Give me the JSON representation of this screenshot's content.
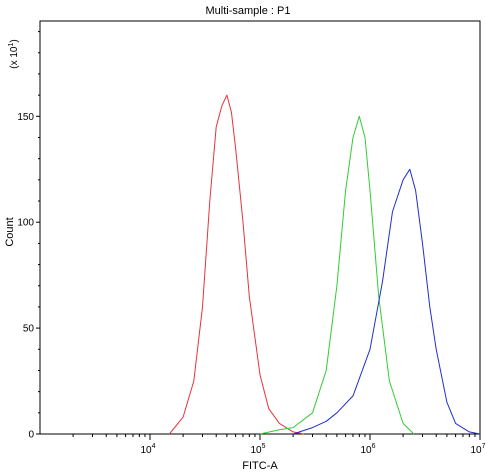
{
  "chart_data": {
    "type": "line",
    "title": "Multi-sample : P1",
    "xlabel": "FITC-A",
    "ylabel": "Count",
    "y_multiplier_label": {
      "base": "(x 10",
      "exp": "1",
      "close": ")"
    },
    "x_scale": "log",
    "xlim": [
      1000,
      10000000
    ],
    "ylim": [
      0,
      195
    ],
    "x_ticks": [
      {
        "base": "10",
        "exp": "4",
        "value": 10000
      },
      {
        "base": "10",
        "exp": "5",
        "value": 100000
      },
      {
        "base": "10",
        "exp": "6",
        "value": 1000000
      },
      {
        "base": "10",
        "exp": "7",
        "value": 10000000
      }
    ],
    "y_ticks": [
      {
        "label": "0",
        "value": 0
      },
      {
        "label": "50",
        "value": 50
      },
      {
        "label": "100",
        "value": 100
      },
      {
        "label": "150",
        "value": 150
      }
    ],
    "grid": false,
    "series": [
      {
        "color": "#e8323c",
        "x": [
          15000,
          20000,
          25000,
          30000,
          35000,
          40000,
          45000,
          50000,
          55000,
          60000,
          70000,
          80000,
          100000,
          120000,
          150000,
          200000,
          250000
        ],
        "y": [
          0,
          8,
          25,
          60,
          110,
          145,
          155,
          160,
          152,
          135,
          100,
          65,
          28,
          12,
          5,
          1,
          0
        ]
      },
      {
        "color": "#33cc33",
        "x": [
          100000,
          150000,
          200000,
          300000,
          400000,
          500000,
          600000,
          700000,
          800000,
          900000,
          1000000,
          1200000,
          1500000,
          2000000,
          2500000
        ],
        "y": [
          0,
          2,
          3,
          10,
          30,
          70,
          115,
          140,
          150,
          140,
          115,
          65,
          25,
          5,
          0
        ]
      },
      {
        "color": "#1f2ecc",
        "x": [
          200000,
          300000,
          400000,
          500000,
          700000,
          1000000,
          1300000,
          1600000,
          2000000,
          2300000,
          2600000,
          3000000,
          3500000,
          4000000,
          5000000,
          6000000,
          8000000,
          10000000
        ],
        "y": [
          0,
          3,
          6,
          10,
          18,
          40,
          72,
          105,
          120,
          125,
          115,
          90,
          60,
          40,
          15,
          5,
          1,
          0
        ]
      }
    ]
  }
}
